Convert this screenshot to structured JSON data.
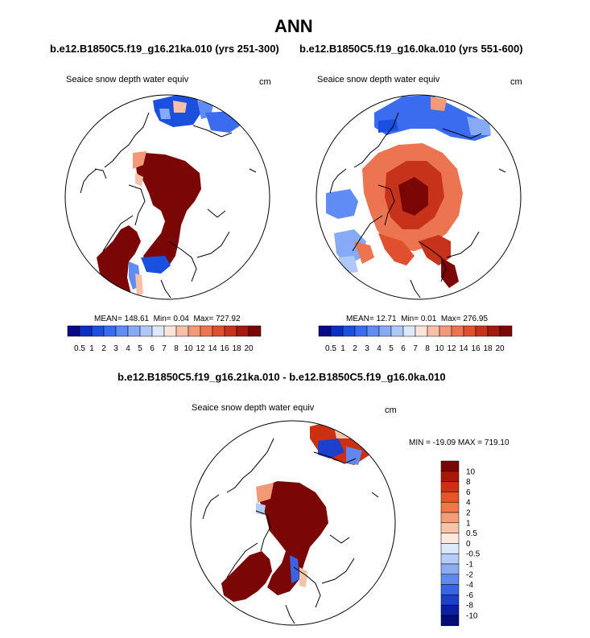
{
  "title": "ANN",
  "panels": [
    {
      "case": "b.e12.B1850C5.f19_g16.21ka.010 (yrs 251-300)",
      "variable": "Seaice snow depth water equiv",
      "units": "cm",
      "stats": {
        "mean_label": "MEAN=",
        "mean": "148.61",
        "min_label": "Min=",
        "min": "0.04",
        "max_label": "Max=",
        "max": "727.92"
      }
    },
    {
      "case": "b.e12.B1850C5.f19_g16.0ka.010 (yrs 551-600)",
      "variable": "Seaice snow depth water equiv",
      "units": "cm",
      "stats": {
        "mean_label": "MEAN=",
        "mean": "12.71",
        "min_label": "Min=",
        "min": "0.01",
        "max_label": "Max=",
        "max": "276.95"
      }
    }
  ],
  "colorbar": {
    "labels": [
      "0.5",
      "1",
      "2",
      "3",
      "4",
      "5",
      "6",
      "7",
      "8",
      "10",
      "12",
      "14",
      "16",
      "18",
      "20"
    ],
    "colors": [
      "#08088a",
      "#0b2ec4",
      "#1a4fe0",
      "#3b6cf0",
      "#5f8cf5",
      "#87aaf7",
      "#b0c8f8",
      "#dde8fb",
      "#fde4d8",
      "#f8c0a8",
      "#f29a78",
      "#ec7450",
      "#e0502e",
      "#c7321a",
      "#a41a0e",
      "#7a0606"
    ]
  },
  "difference": {
    "title": "b.e12.B1850C5.f19_g16.21ka.010 - b.e12.B1850C5.f19_g16.0ka.010",
    "variable": "Seaice snow depth water equiv",
    "units": "cm",
    "minmax": "MIN = -19.09 MAX = 719.10",
    "colorbar": {
      "labels": [
        "10",
        "8",
        "6",
        "4",
        "2",
        "1",
        "0.5",
        "0",
        "-0.5",
        "-1",
        "-2",
        "-4",
        "-6",
        "-8",
        "-10"
      ],
      "colors": [
        "#7a0606",
        "#a81808",
        "#cc3010",
        "#e65528",
        "#f07848",
        "#f59c78",
        "#f8c4a8",
        "#fde8dc",
        "#dce8fb",
        "#b4ccf6",
        "#8cacf2",
        "#6088ee",
        "#3a64e6",
        "#1a40cc",
        "#0a20a0",
        "#040c78"
      ]
    }
  }
}
